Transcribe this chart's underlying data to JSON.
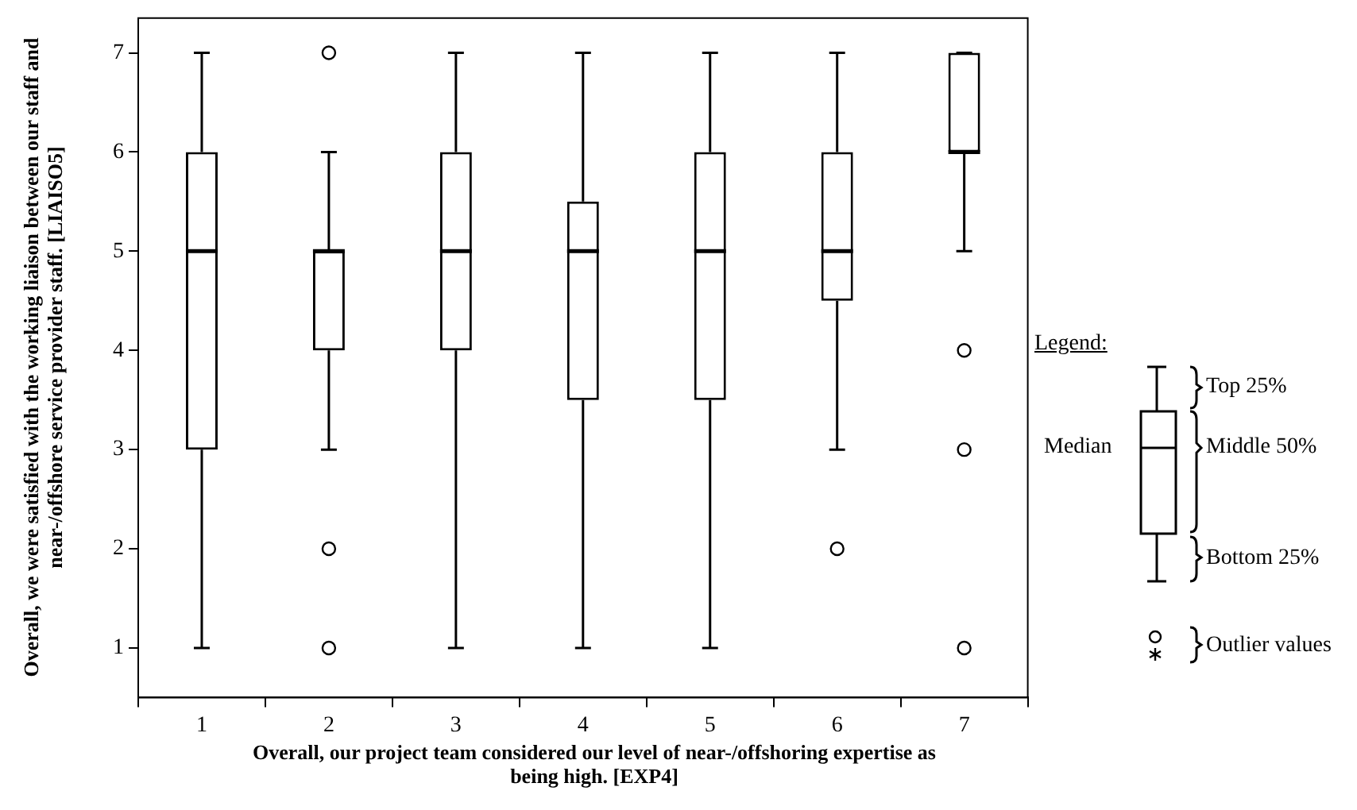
{
  "chart_data": {
    "type": "box",
    "xlabel": "Overall, our project team considered our level of near-/offshoring expertise as being high. [EXP4]",
    "ylabel": "Overall, we were satisfied with the working liaison between our staff and near-/offshore service provider staff. [LIAISO5]",
    "categories": [
      "1",
      "2",
      "3",
      "4",
      "5",
      "6",
      "7"
    ],
    "boxes": [
      {
        "low": 1,
        "q1": 3,
        "median": 5,
        "q3": 6,
        "high": 7
      },
      {
        "low": 3,
        "q1": 4,
        "median": 5,
        "q3": 5,
        "high": 6,
        "outliers": [
          7,
          2,
          1
        ]
      },
      {
        "low": 1,
        "q1": 4,
        "median": 5,
        "q3": 6,
        "high": 7
      },
      {
        "low": 1,
        "q1": 3.5,
        "median": 5,
        "q3": 5.5,
        "high": 7
      },
      {
        "low": 1,
        "q1": 3.5,
        "median": 5,
        "q3": 6,
        "high": 7
      },
      {
        "low": 3,
        "q1": 4.5,
        "median": 5,
        "q3": 6,
        "high": 7,
        "outliers": [
          2
        ]
      },
      {
        "low": 5,
        "q1": 6,
        "median": 6,
        "q3": 7,
        "high": 7,
        "outliers": [
          4,
          3,
          1
        ]
      }
    ],
    "color": "#000000",
    "ylim": [
      0.5,
      7.35
    ],
    "yticks": [
      1,
      2,
      3,
      4,
      5,
      6,
      7
    ],
    "grid": false,
    "legend": false,
    "marker": "circle",
    "annotations": [
      "Legend:",
      "Top 25%",
      "Median",
      "Middle 50%",
      "Bottom 25%",
      "Outlier values"
    ]
  }
}
